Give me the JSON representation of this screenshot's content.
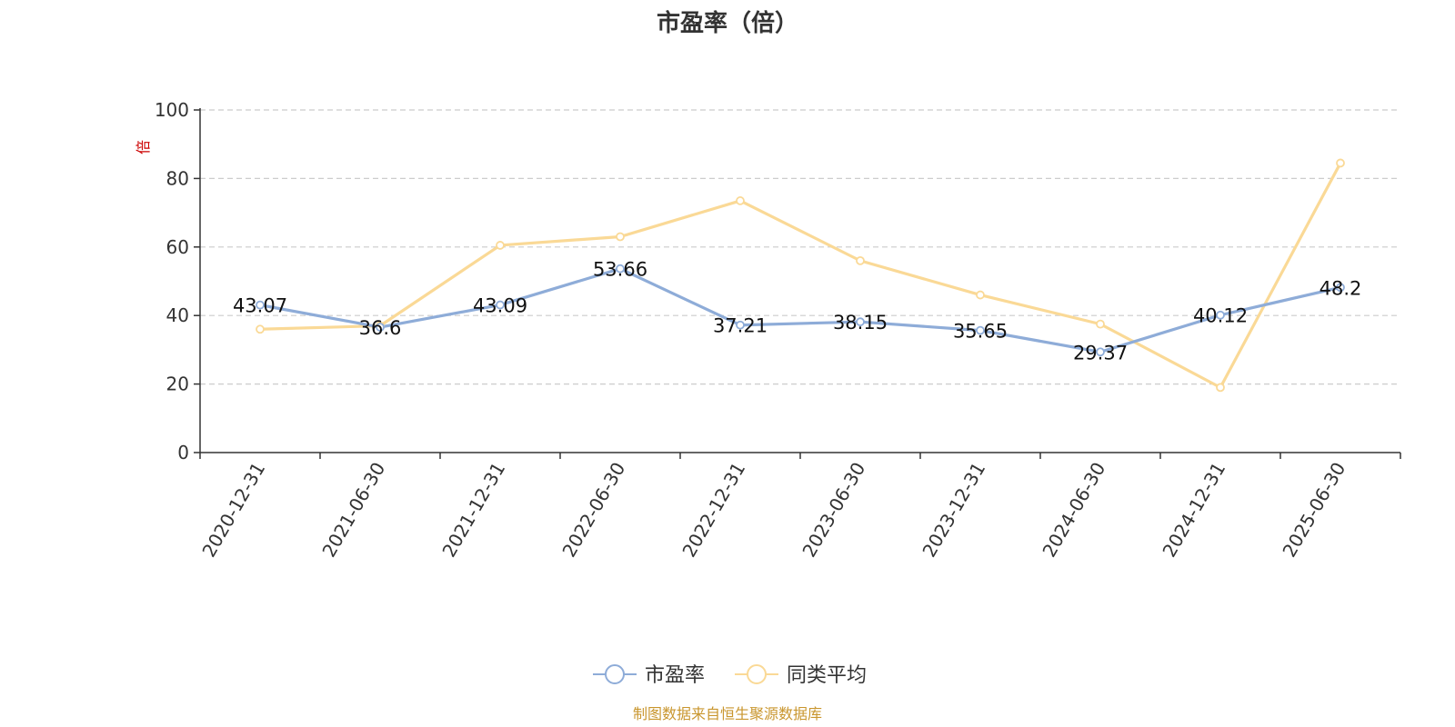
{
  "chart_data": {
    "type": "line",
    "title": "市盈率（倍）",
    "yunit": "倍",
    "ylim": [
      0,
      100
    ],
    "yticks": [
      0,
      20,
      40,
      60,
      80,
      100
    ],
    "grid": true,
    "legend_position": "bottom-center",
    "categories": [
      "2020-12-31",
      "2021-06-30",
      "2021-12-31",
      "2022-06-30",
      "2022-12-31",
      "2023-06-30",
      "2023-12-31",
      "2024-06-30",
      "2024-12-31",
      "2025-06-30"
    ],
    "series": [
      {
        "name": "市盈率",
        "color": "#8eacd8",
        "values": [
          43.07,
          36.6,
          43.09,
          53.66,
          37.21,
          38.15,
          35.65,
          29.37,
          40.12,
          48.2
        ],
        "labels": [
          "43.07",
          "36.6",
          "43.09",
          "53.66",
          "37.21",
          "38.15",
          "35.65",
          "29.37",
          "40.12",
          "48.2"
        ]
      },
      {
        "name": "同类平均",
        "color": "#fad996",
        "values": [
          36.0,
          37.0,
          60.5,
          63.0,
          73.5,
          56.0,
          46.0,
          37.5,
          19.0,
          84.5
        ]
      }
    ]
  },
  "footer": {
    "source": "制图数据来自恒生聚源数据库"
  }
}
